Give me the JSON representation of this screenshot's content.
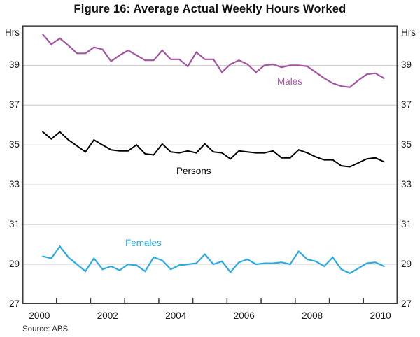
{
  "title": "Figure 16: Average Actual Weekly Hours Worked",
  "y_axis_unit_left": "Hrs",
  "y_axis_unit_right": "Hrs",
  "source": "Source: ABS",
  "chart_data": {
    "type": "line",
    "title": "Figure 16: Average Actual Weekly Hours Worked",
    "xlabel": "",
    "ylabel": "Hrs",
    "ylim": [
      27,
      41
    ],
    "yticks": [
      27,
      29,
      31,
      33,
      35,
      37,
      39
    ],
    "xlim": [
      2000,
      2011
    ],
    "xtick_years": [
      2001,
      2002,
      2003,
      2004,
      2005,
      2006,
      2007,
      2008,
      2009,
      2010
    ],
    "xlabel_years": [
      2000,
      2002,
      2004,
      2006,
      2008,
      2010
    ],
    "grid": "horizontal",
    "legend_position": "inline-labels",
    "x_start": 2000.6,
    "x_step": 0.25,
    "series": [
      {
        "name": "Males",
        "color": "#a355a3",
        "values": [
          40.55,
          40.05,
          40.35,
          40.0,
          39.6,
          39.6,
          39.9,
          39.8,
          39.2,
          39.5,
          39.75,
          39.5,
          39.25,
          39.25,
          39.75,
          39.3,
          39.3,
          38.95,
          39.65,
          39.3,
          39.3,
          38.65,
          39.05,
          39.25,
          39.05,
          38.65,
          39.0,
          39.05,
          38.9,
          39.0,
          39.0,
          38.95,
          38.65,
          38.35,
          38.1,
          37.95,
          37.9,
          38.25,
          38.55,
          38.6,
          38.35
        ]
      },
      {
        "name": "Persons",
        "color": "#000000",
        "values": [
          35.65,
          35.3,
          35.65,
          35.25,
          34.95,
          34.65,
          35.25,
          35.0,
          34.75,
          34.7,
          34.7,
          35.0,
          34.55,
          34.5,
          35.05,
          34.65,
          34.6,
          34.7,
          34.6,
          35.05,
          34.65,
          34.6,
          34.3,
          34.7,
          34.65,
          34.6,
          34.6,
          34.7,
          34.35,
          34.35,
          34.75,
          34.6,
          34.4,
          34.25,
          34.25,
          33.95,
          33.9,
          34.1,
          34.3,
          34.35,
          34.15
        ]
      },
      {
        "name": "Females",
        "color": "#29abe2",
        "values": [
          29.4,
          29.3,
          29.9,
          29.35,
          29.0,
          28.65,
          29.3,
          28.75,
          28.9,
          28.7,
          29.0,
          28.95,
          28.65,
          29.35,
          29.2,
          28.75,
          28.95,
          29.0,
          29.05,
          29.5,
          29.0,
          29.15,
          28.6,
          29.1,
          29.25,
          29.0,
          29.05,
          29.05,
          29.1,
          29.0,
          29.65,
          29.25,
          29.15,
          28.9,
          29.35,
          28.75,
          28.55,
          28.8,
          29.05,
          29.1,
          28.9
        ]
      }
    ]
  }
}
